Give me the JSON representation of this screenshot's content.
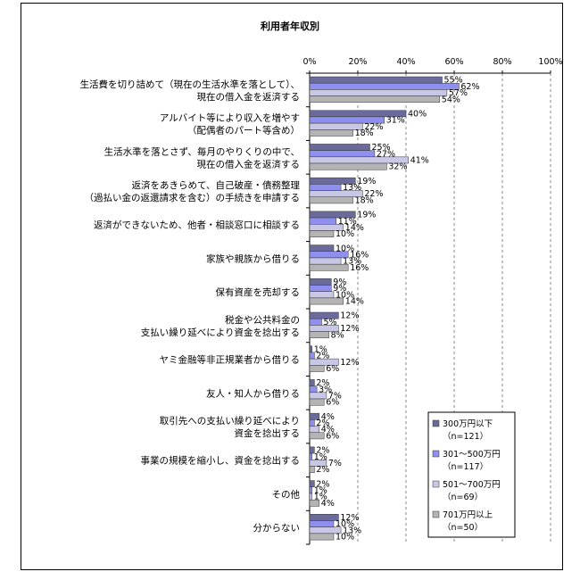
{
  "chart_data": {
    "type": "bar",
    "orientation": "horizontal",
    "title": "利用者年収別",
    "xlim": [
      0,
      100
    ],
    "x_ticks": [
      "0%",
      "20%",
      "40%",
      "60%",
      "80%",
      "100%"
    ],
    "grid": "vertical dashed",
    "legend_position": "bottom-right",
    "categories": [
      [
        "生活費を切り詰めて（現在の生活水準を落として）、",
        "現在の借入金を返済する"
      ],
      [
        "アルバイト等により収入を増やす",
        "（配偶者のパート等含め）"
      ],
      [
        "生活水準を落とさず、毎月のやりくりの中で、",
        "現在の借入金を返済する"
      ],
      [
        "返済をあきらめて、自己破産・債務整理",
        "（過払い金の返還請求を含む）の手続きを申請する"
      ],
      [
        "返済ができないため、他者・相談窓口に相談する"
      ],
      [
        "家族や親族から借りる"
      ],
      [
        "保有資産を売却する"
      ],
      [
        "税金や公共料金の",
        "支払い繰り延べにより資金を捻出する"
      ],
      [
        "ヤミ金融等非正規業者から借りる"
      ],
      [
        "友人・知人から借りる"
      ],
      [
        "取引先への支払い繰り延べにより",
        "資金を捻出する"
      ],
      [
        "事業の規模を縮小し、資金を捻出する"
      ],
      [
        "その他"
      ],
      [
        "分からない"
      ]
    ],
    "series": [
      {
        "name": "300万円以下",
        "n": "（n=121）",
        "color": "#6b6b9b",
        "values": [
          55,
          40,
          25,
          19,
          19,
          10,
          9,
          12,
          1,
          2,
          4,
          2,
          2,
          12
        ]
      },
      {
        "name": "301～500万円",
        "n": "（n=117）",
        "color": "#8f8ff0",
        "values": [
          62,
          31,
          27,
          13,
          11,
          16,
          9,
          5,
          2,
          3,
          2,
          1,
          1,
          10
        ]
      },
      {
        "name": "501～700万円",
        "n": "（n=69）",
        "color": "#c8c8e6",
        "values": [
          57,
          22,
          41,
          22,
          14,
          13,
          10,
          12,
          12,
          7,
          4,
          7,
          1,
          13
        ]
      },
      {
        "name": "701万円以上",
        "n": "（n=50）",
        "color": "#b4b4b4",
        "values": [
          54,
          18,
          32,
          18,
          10,
          16,
          14,
          8,
          6,
          6,
          6,
          2,
          4,
          10
        ]
      }
    ],
    "value_suffix": "%"
  }
}
